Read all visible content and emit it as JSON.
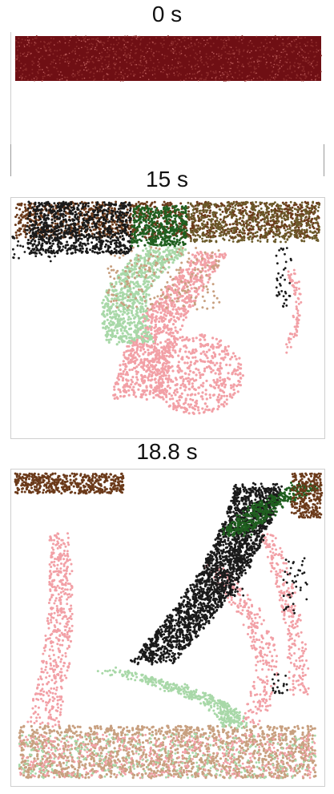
{
  "panels": [
    {
      "time_label": "0 s"
    },
    {
      "time_label": "15 s"
    },
    {
      "time_label": "18.8 s"
    }
  ],
  "colors": {
    "dark_red": "#6f0f14",
    "black": "#1a1a1a",
    "dark_green": "#1f5f1f",
    "brown": "#6b3a1a",
    "olive": "#6b5a2a",
    "pink": "#f2a0a6",
    "light_green": "#a8d8a8",
    "tan": "#c8a080"
  }
}
